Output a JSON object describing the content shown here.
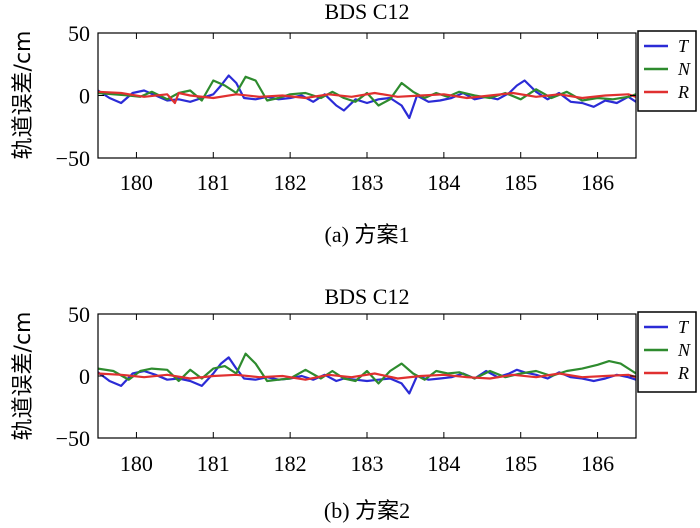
{
  "chart_data": [
    {
      "type": "line",
      "title": "BDS C12",
      "ylabel": "轨道误差/cm",
      "caption": "(a) 方案1",
      "xlim": [
        179.5,
        186.5
      ],
      "ylim": [
        -50,
        50
      ],
      "xticks": [
        "180",
        "181",
        "182",
        "183",
        "184",
        "185",
        "186"
      ],
      "yticks": [
        "50",
        "0",
        "−50"
      ],
      "legend_position": "top-right",
      "series": [
        {
          "name": "T",
          "color": "#2b2bd6",
          "x": [
            179.5,
            179.65,
            179.8,
            179.95,
            180.1,
            180.25,
            180.4,
            180.55,
            180.7,
            180.85,
            181.0,
            181.1,
            181.2,
            181.3,
            181.4,
            181.55,
            181.7,
            181.85,
            182.0,
            182.15,
            182.3,
            182.45,
            182.6,
            182.7,
            182.85,
            183.0,
            183.15,
            183.3,
            183.45,
            183.55,
            183.65,
            183.8,
            183.95,
            184.1,
            184.25,
            184.4,
            184.55,
            184.7,
            184.85,
            184.95,
            185.05,
            185.2,
            185.35,
            185.5,
            185.65,
            185.8,
            185.95,
            186.1,
            186.25,
            186.4,
            186.5
          ],
          "y": [
            4,
            -2,
            -6,
            2,
            4,
            0,
            -4,
            -3,
            -5,
            -2,
            1,
            8,
            16,
            10,
            -2,
            -3,
            -1,
            -3,
            -2,
            0,
            -5,
            1,
            -8,
            -12,
            -3,
            -6,
            -3,
            -2,
            -8,
            -18,
            0,
            -5,
            -4,
            -2,
            2,
            -3,
            -1,
            -3,
            2,
            8,
            12,
            3,
            -3,
            2,
            -5,
            -6,
            -9,
            -4,
            -6,
            -1,
            -5
          ]
        },
        {
          "name": "N",
          "color": "#2e8b2e",
          "x": [
            179.5,
            179.7,
            179.9,
            180.05,
            180.2,
            180.4,
            180.55,
            180.7,
            180.85,
            181.0,
            181.15,
            181.3,
            181.42,
            181.55,
            181.7,
            181.85,
            182.0,
            182.2,
            182.4,
            182.55,
            182.7,
            182.85,
            183.0,
            183.15,
            183.3,
            183.45,
            183.6,
            183.75,
            183.9,
            184.05,
            184.2,
            184.4,
            184.6,
            184.8,
            185.0,
            185.2,
            185.4,
            185.6,
            185.8,
            186.0,
            186.2,
            186.4,
            186.5
          ],
          "y": [
            2,
            1,
            0,
            -1,
            3,
            -3,
            2,
            4,
            -4,
            12,
            8,
            2,
            15,
            12,
            -4,
            -2,
            1,
            2,
            -2,
            3,
            -2,
            -5,
            2,
            -8,
            -3,
            10,
            3,
            -2,
            2,
            -1,
            3,
            0,
            -2,
            2,
            -3,
            5,
            -2,
            3,
            -4,
            -2,
            -3,
            -1,
            1
          ]
        },
        {
          "name": "R",
          "color": "#e03030",
          "x": [
            179.5,
            179.8,
            180.1,
            180.4,
            180.5,
            180.55,
            180.7,
            181.0,
            181.3,
            181.6,
            181.9,
            182.2,
            182.5,
            182.8,
            183.1,
            183.4,
            183.7,
            184.0,
            184.3,
            184.6,
            184.9,
            185.2,
            185.5,
            185.8,
            186.1,
            186.4,
            186.5
          ],
          "y": [
            3,
            2,
            -1,
            1,
            -6,
            2,
            0,
            -2,
            1,
            -1,
            0,
            -2,
            1,
            -1,
            2,
            -1,
            0,
            1,
            -2,
            0,
            2,
            -1,
            1,
            -2,
            0,
            1,
            -1
          ]
        }
      ]
    },
    {
      "type": "line",
      "title": "BDS C12",
      "ylabel": "轨道误差/cm",
      "caption": "(b) 方案2",
      "xlim": [
        179.5,
        186.5
      ],
      "ylim": [
        -50,
        50
      ],
      "xticks": [
        "180",
        "181",
        "182",
        "183",
        "184",
        "185",
        "186"
      ],
      "yticks": [
        "50",
        "0",
        "−50"
      ],
      "legend_position": "top-right",
      "series": [
        {
          "name": "T",
          "color": "#2b2bd6",
          "x": [
            179.5,
            179.65,
            179.8,
            179.95,
            180.1,
            180.25,
            180.4,
            180.55,
            180.7,
            180.85,
            181.0,
            181.1,
            181.2,
            181.3,
            181.4,
            181.55,
            181.7,
            181.85,
            182.0,
            182.15,
            182.3,
            182.45,
            182.6,
            182.7,
            182.85,
            183.0,
            183.15,
            183.3,
            183.45,
            183.55,
            183.65,
            183.8,
            183.95,
            184.1,
            184.25,
            184.4,
            184.55,
            184.7,
            184.85,
            184.95,
            185.05,
            185.2,
            185.35,
            185.5,
            185.65,
            185.8,
            185.95,
            186.1,
            186.25,
            186.4,
            186.5
          ],
          "y": [
            3,
            -4,
            -8,
            2,
            4,
            1,
            -3,
            -2,
            -4,
            -8,
            2,
            10,
            15,
            6,
            -2,
            -3,
            -1,
            -3,
            -2,
            0,
            -3,
            1,
            -4,
            -2,
            -3,
            -4,
            -3,
            -2,
            -6,
            -14,
            0,
            -3,
            -2,
            -1,
            2,
            -2,
            4,
            -1,
            2,
            5,
            3,
            1,
            -2,
            3,
            -1,
            -2,
            -4,
            -2,
            1,
            -1,
            -3
          ]
        },
        {
          "name": "N",
          "color": "#2e8b2e",
          "x": [
            179.5,
            179.7,
            179.9,
            180.05,
            180.2,
            180.4,
            180.55,
            180.7,
            180.85,
            181.0,
            181.15,
            181.3,
            181.42,
            181.55,
            181.7,
            181.85,
            182.0,
            182.2,
            182.4,
            182.55,
            182.7,
            182.85,
            183.0,
            183.15,
            183.3,
            183.45,
            183.6,
            183.75,
            183.9,
            184.05,
            184.2,
            184.4,
            184.6,
            184.8,
            185.0,
            185.2,
            185.4,
            185.6,
            185.8,
            186.0,
            186.15,
            186.3,
            186.45,
            186.5
          ],
          "y": [
            6,
            4,
            -3,
            4,
            6,
            5,
            -4,
            5,
            -2,
            6,
            8,
            2,
            18,
            10,
            -4,
            -3,
            -2,
            5,
            -2,
            4,
            -2,
            -4,
            4,
            -6,
            4,
            10,
            2,
            -3,
            4,
            2,
            3,
            -2,
            4,
            -1,
            2,
            4,
            0,
            4,
            6,
            9,
            12,
            10,
            4,
            2
          ]
        },
        {
          "name": "R",
          "color": "#e03030",
          "x": [
            179.5,
            179.8,
            180.1,
            180.4,
            180.7,
            181.0,
            181.3,
            181.6,
            181.9,
            182.2,
            182.5,
            182.8,
            183.1,
            183.4,
            183.7,
            184.0,
            184.3,
            184.6,
            184.9,
            185.2,
            185.5,
            185.8,
            186.1,
            186.4,
            186.5
          ],
          "y": [
            2,
            1,
            -1,
            1,
            -2,
            0,
            1,
            -1,
            0,
            -3,
            1,
            -1,
            2,
            -2,
            0,
            1,
            -1,
            -2,
            1,
            -1,
            2,
            -1,
            0,
            1,
            -1
          ]
        }
      ]
    }
  ]
}
